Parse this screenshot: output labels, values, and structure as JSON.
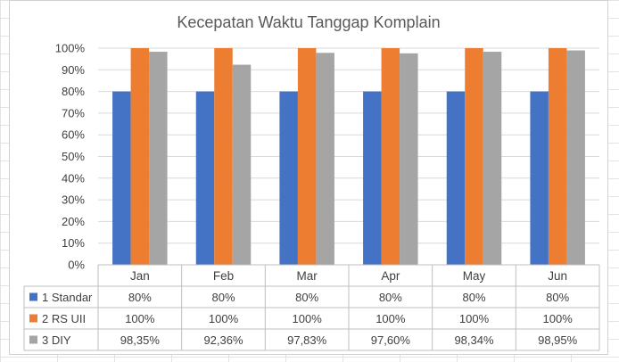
{
  "chart_data": {
    "type": "bar",
    "title": "Kecepatan Waktu Tanggap Komplain",
    "categories": [
      "Jan",
      "Feb",
      "Mar",
      "Apr",
      "May",
      "Jun"
    ],
    "ylim": [
      0,
      100
    ],
    "y_ticks": [
      "0%",
      "10%",
      "20%",
      "30%",
      "40%",
      "50%",
      "60%",
      "70%",
      "80%",
      "90%",
      "100%"
    ],
    "grid": true,
    "legend": "data-table",
    "series": [
      {
        "name": "1 Standar",
        "color": "#4472C4",
        "values": [
          80,
          80,
          80,
          80,
          80,
          80
        ],
        "labels": [
          "80%",
          "80%",
          "80%",
          "80%",
          "80%",
          "80%"
        ]
      },
      {
        "name": "2 RS UII",
        "color": "#ED7D31",
        "values": [
          100,
          100,
          100,
          100,
          100,
          100
        ],
        "labels": [
          "100%",
          "100%",
          "100%",
          "100%",
          "100%",
          "100%"
        ]
      },
      {
        "name": "3 DIY",
        "color": "#A5A5A5",
        "values": [
          98.35,
          92.36,
          97.83,
          97.6,
          98.34,
          98.95
        ],
        "labels": [
          "98,35%",
          "92,36%",
          "97,83%",
          "97,60%",
          "98,34%",
          "98,95%"
        ]
      }
    ]
  }
}
